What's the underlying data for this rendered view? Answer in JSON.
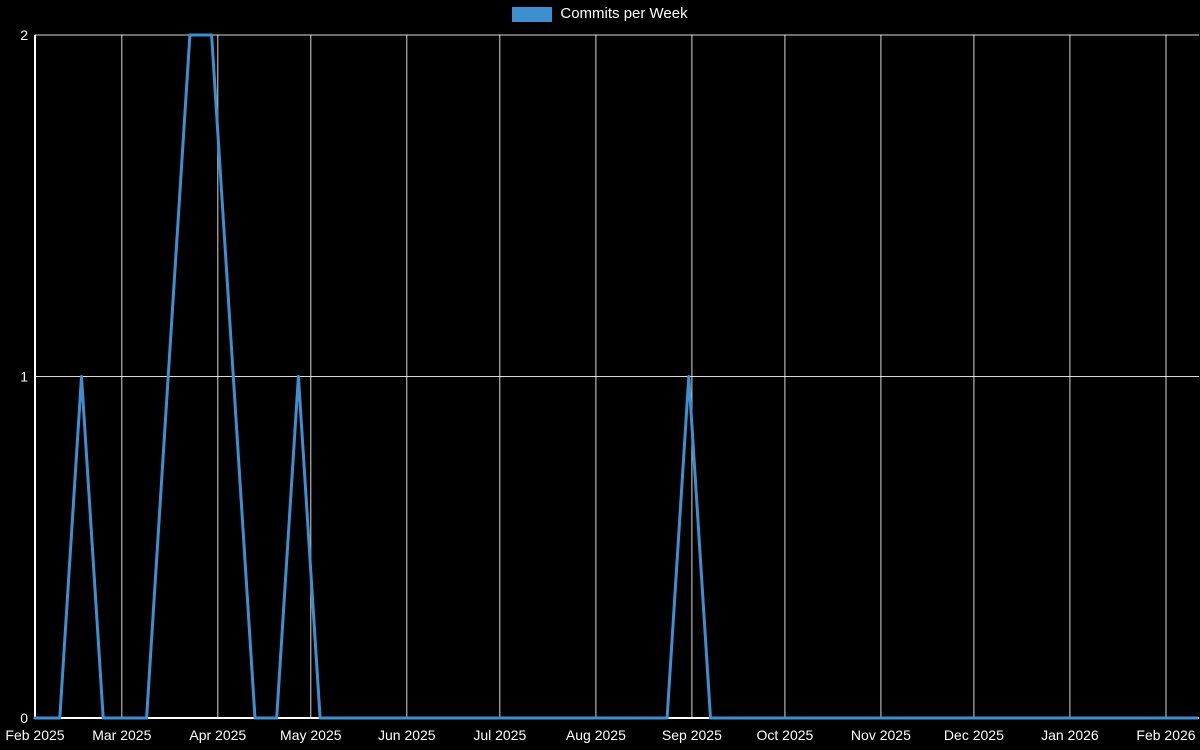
{
  "page": {
    "background": "#000000"
  },
  "chart_data": {
    "type": "line",
    "title": "",
    "legend": [
      {
        "label": "Commits per Week",
        "color": "#3e8ed0"
      }
    ],
    "grid_color": "rgba(255,255,255,0.85)",
    "axis_color": "#ffffff",
    "text_color": "#ffffff",
    "background": "#000000",
    "x_axis": {
      "ticks": [
        {
          "date": "2025-02-01",
          "label": "Feb 2025"
        },
        {
          "date": "2025-03-01",
          "label": "Mar 2025"
        },
        {
          "date": "2025-04-01",
          "label": "Apr 2025"
        },
        {
          "date": "2025-05-01",
          "label": "May 2025"
        },
        {
          "date": "2025-06-01",
          "label": "Jun 2025"
        },
        {
          "date": "2025-07-01",
          "label": "Jul 2025"
        },
        {
          "date": "2025-08-01",
          "label": "Aug 2025"
        },
        {
          "date": "2025-09-01",
          "label": "Sep 2025"
        },
        {
          "date": "2025-10-01",
          "label": "Oct 2025"
        },
        {
          "date": "2025-11-01",
          "label": "Nov 2025"
        },
        {
          "date": "2025-12-01",
          "label": "Dec 2025"
        },
        {
          "date": "2026-01-01",
          "label": "Jan 2026"
        },
        {
          "date": "2026-02-01",
          "label": "Feb 2026"
        }
      ]
    },
    "y_axis": {
      "range": [
        0,
        2
      ],
      "ticks": [
        0,
        1,
        2
      ]
    },
    "series": [
      {
        "name": "Commits per Week",
        "color": "#3e8ed0",
        "points": [
          [
            "2025-02-01",
            0
          ],
          [
            "2025-02-02",
            0
          ],
          [
            "2025-02-09",
            0
          ],
          [
            "2025-02-16",
            1
          ],
          [
            "2025-02-23",
            0
          ],
          [
            "2025-03-02",
            0
          ],
          [
            "2025-03-09",
            0
          ],
          [
            "2025-03-16",
            1
          ],
          [
            "2025-03-23",
            2
          ],
          [
            "2025-03-30",
            2
          ],
          [
            "2025-04-06",
            1
          ],
          [
            "2025-04-13",
            0
          ],
          [
            "2025-04-20",
            0
          ],
          [
            "2025-04-27",
            1
          ],
          [
            "2025-05-04",
            0
          ],
          [
            "2025-05-11",
            0
          ],
          [
            "2025-05-18",
            0
          ],
          [
            "2025-05-25",
            0
          ],
          [
            "2025-06-01",
            0
          ],
          [
            "2025-06-08",
            0
          ],
          [
            "2025-06-15",
            0
          ],
          [
            "2025-06-22",
            0
          ],
          [
            "2025-06-29",
            0
          ],
          [
            "2025-07-06",
            0
          ],
          [
            "2025-07-13",
            0
          ],
          [
            "2025-07-20",
            0
          ],
          [
            "2025-07-27",
            0
          ],
          [
            "2025-08-03",
            0
          ],
          [
            "2025-08-10",
            0
          ],
          [
            "2025-08-17",
            0
          ],
          [
            "2025-08-24",
            0
          ],
          [
            "2025-08-31",
            1
          ],
          [
            "2025-09-07",
            0
          ],
          [
            "2025-09-14",
            0
          ],
          [
            "2025-09-21",
            0
          ],
          [
            "2025-09-28",
            0
          ],
          [
            "2025-10-05",
            0
          ],
          [
            "2025-10-12",
            0
          ],
          [
            "2025-10-19",
            0
          ],
          [
            "2025-10-26",
            0
          ],
          [
            "2025-11-02",
            0
          ],
          [
            "2025-11-09",
            0
          ],
          [
            "2025-11-16",
            0
          ],
          [
            "2025-11-23",
            0
          ],
          [
            "2025-11-30",
            0
          ],
          [
            "2025-12-07",
            0
          ],
          [
            "2025-12-14",
            0
          ],
          [
            "2025-12-21",
            0
          ],
          [
            "2025-12-28",
            0
          ],
          [
            "2026-01-04",
            0
          ],
          [
            "2026-01-11",
            0
          ],
          [
            "2026-01-18",
            0
          ],
          [
            "2026-01-25",
            0
          ],
          [
            "2026-02-01",
            0
          ],
          [
            "2026-02-08",
            0
          ],
          [
            "2026-02-11",
            0
          ]
        ]
      }
    ]
  }
}
